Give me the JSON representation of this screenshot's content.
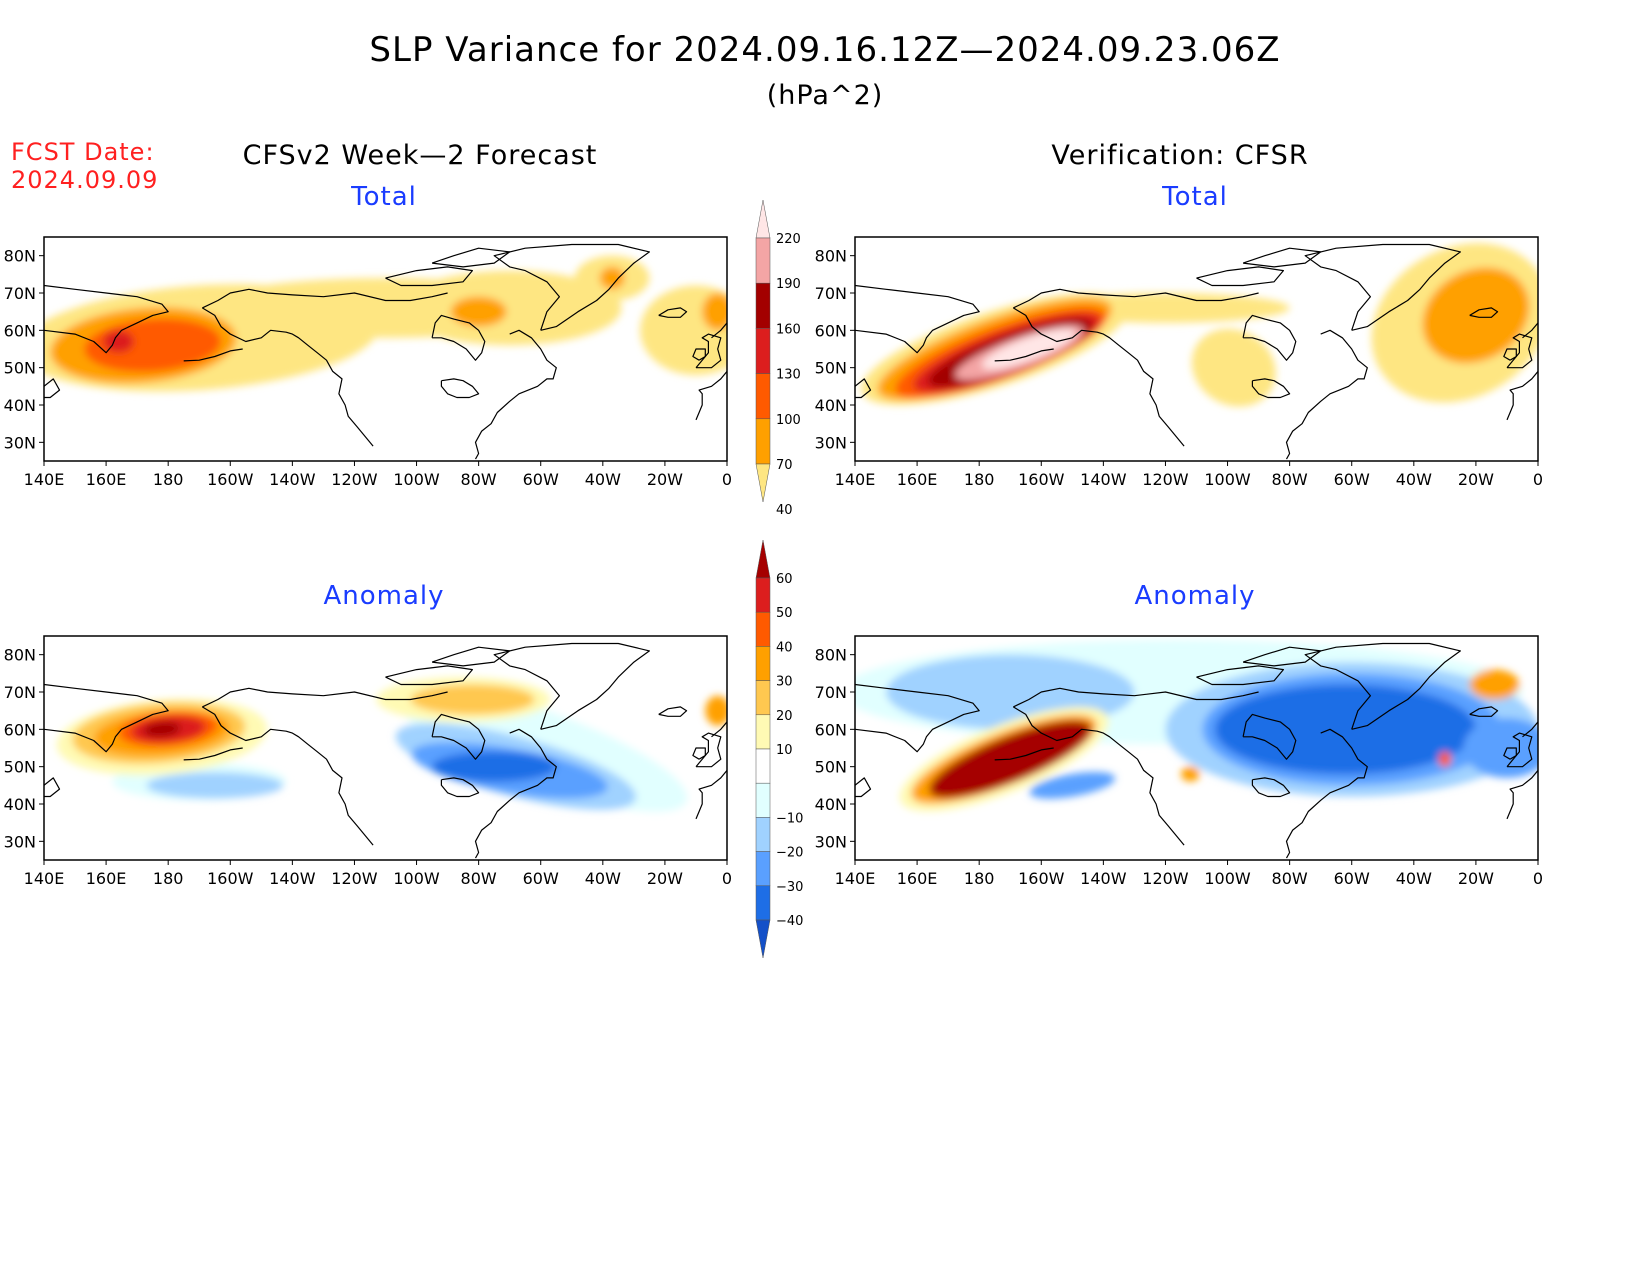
{
  "header": {
    "title": "SLP Variance for 2024.09.16.12Z—2024.09.23.06Z",
    "units": "(hPa^2)",
    "fcst_label": "FCST Date:",
    "fcst_date": "2024.09.09",
    "left_heading": "CFSv2 Week—2 Forecast",
    "right_heading": "Verification: CFSR"
  },
  "axes": {
    "lon_ticks": [
      "140E",
      "160E",
      "180",
      "160W",
      "140W",
      "120W",
      "100W",
      "80W",
      "60W",
      "40W",
      "20W",
      "0"
    ],
    "lat_ticks": [
      "80N",
      "70N",
      "60N",
      "50N",
      "40N",
      "30N"
    ]
  },
  "panels": [
    {
      "id": "fcst-total",
      "title": "Total"
    },
    {
      "id": "obs-total",
      "title": "Total"
    },
    {
      "id": "fcst-anomaly",
      "title": "Anomaly"
    },
    {
      "id": "obs-anomaly",
      "title": "Anomaly"
    }
  ],
  "colorbar_total": {
    "labels": [
      "220",
      "190",
      "160",
      "130",
      "100",
      "70",
      "40"
    ],
    "colors": [
      "#ffe6e6",
      "#f4a5a5",
      "#a30000",
      "#dc1e1e",
      "#ff5a00",
      "#ffa000",
      "#fee682"
    ]
  },
  "colorbar_anomaly": {
    "labels": [
      "60",
      "50",
      "40",
      "30",
      "20",
      "10",
      "−10",
      "−20",
      "−30",
      "−40"
    ],
    "colors": [
      "#a50000",
      "#dc1e1e",
      "#ff5a00",
      "#ffa000",
      "#ffc850",
      "#fffab4",
      "#ffffff",
      "#e1ffff",
      "#a0d2ff",
      "#5aa0ff",
      "#1e6ee6",
      "#1450c8"
    ]
  }
}
